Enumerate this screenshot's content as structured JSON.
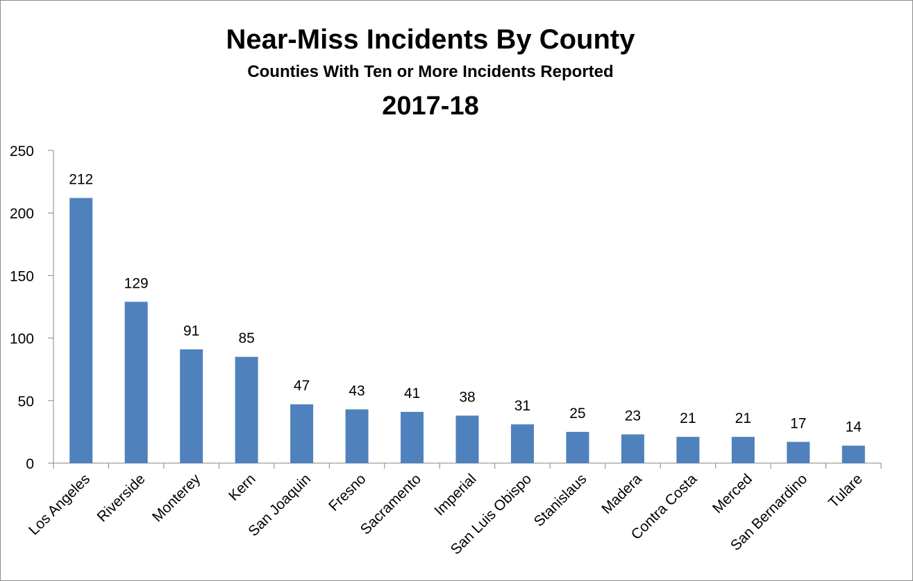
{
  "chart_data": {
    "type": "bar",
    "title": "Near-Miss Incidents By County",
    "subtitle": "Counties With Ten or More Incidents Reported",
    "period": "2017-18",
    "categories": [
      "Los Angeles",
      "Riverside",
      "Monterey",
      "Kern",
      "San Joaquin",
      "Fresno",
      "Sacramento",
      "Imperial",
      "San Luis Obispo",
      "Stanislaus",
      "Madera",
      "Contra Costa",
      "Merced",
      "San Bernardino",
      "Tulare"
    ],
    "values": [
      212,
      129,
      91,
      85,
      47,
      43,
      41,
      38,
      31,
      25,
      23,
      21,
      21,
      17,
      14
    ],
    "ylim": [
      0,
      250
    ],
    "yticks": [
      0,
      50,
      100,
      150,
      200,
      250
    ],
    "xlabel": "",
    "ylabel": "",
    "grid": false,
    "legend": "none",
    "data_labels": true,
    "bar_color": "#4F81BD"
  }
}
